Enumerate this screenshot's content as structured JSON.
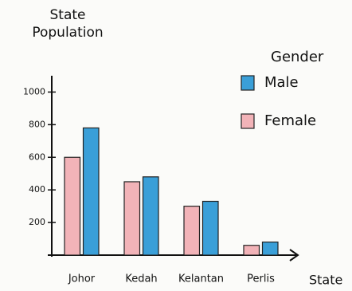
{
  "chart_data": {
    "type": "bar",
    "y_label": "State Population",
    "x_label": "State",
    "legend_title": "Gender",
    "categories": [
      "Johor",
      "Kedah",
      "Kelantan",
      "Perlis"
    ],
    "series": [
      {
        "name": "Female",
        "color": "#f2b3b8",
        "values": [
          600,
          450,
          300,
          60
        ]
      },
      {
        "name": "Male",
        "color": "#3a9fd8",
        "values": [
          780,
          480,
          330,
          80
        ]
      }
    ],
    "ylim": [
      0,
      1100
    ],
    "yticks": [
      200,
      400,
      600,
      800,
      1000
    ]
  }
}
